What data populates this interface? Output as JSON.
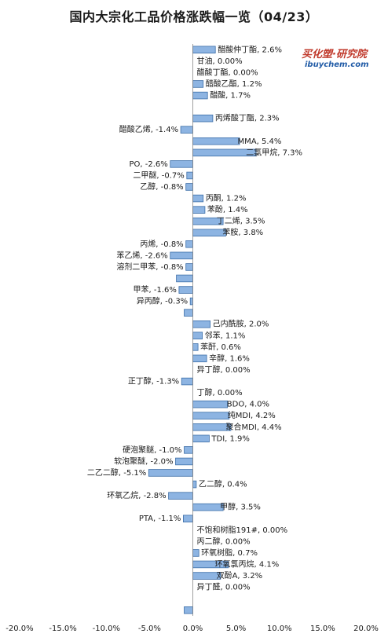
{
  "logo": {
    "main": "买化塑·研究院",
    "sub": "ibuychem.com"
  },
  "chart_data": {
    "type": "bar",
    "orientation": "horizontal",
    "title": "国内大宗化工品价格涨跌幅一览（04/23）",
    "xlim": [
      -20,
      20
    ],
    "xticks": [
      "-20.0%",
      "-15.0%",
      "-10.0%",
      "-5.0%",
      "0.0%",
      "5.0%",
      "10.0%",
      "15.0%",
      "20.0%"
    ],
    "grid": false,
    "legend": "none",
    "bar_color": "#8db4e2",
    "bars": [
      {
        "label": "醋酸仲丁酯, 2.6%",
        "value": 2.6
      },
      {
        "label": "甘油, 0.00%",
        "value": 0.0
      },
      {
        "label": "醋酸丁酯, 0.00%",
        "value": 0.0
      },
      {
        "label": "醋酸乙酯, 1.2%",
        "value": 1.2
      },
      {
        "label": "醋酸, 1.7%",
        "value": 1.7
      },
      {
        "label": "",
        "value": 0.0
      },
      {
        "label": "丙烯酸丁酯, 2.3%",
        "value": 2.3
      },
      {
        "label": "醋酸乙烯, -1.4%",
        "value": -1.4
      },
      {
        "label": "MMA, 5.4%",
        "value": 5.4
      },
      {
        "label": "二氯甲烷, 7.3%",
        "value": 7.3
      },
      {
        "label": "PO, -2.6%",
        "value": -2.6
      },
      {
        "label": "二甲醚, -0.7%",
        "value": -0.7
      },
      {
        "label": "乙醇, -0.8%",
        "value": -0.8
      },
      {
        "label": "丙酮, 1.2%",
        "value": 1.2
      },
      {
        "label": "苯酚, 1.4%",
        "value": 1.4
      },
      {
        "label": "丁二烯, 3.5%",
        "value": 3.5
      },
      {
        "label": "苯胺, 3.8%",
        "value": 3.8
      },
      {
        "label": "丙烯, -0.8%",
        "value": -0.8
      },
      {
        "label": "苯乙烯, -2.6%",
        "value": -2.6
      },
      {
        "label": "溶剂二甲苯, -0.8%",
        "value": -0.8
      },
      {
        "label": "",
        "value": -1.9
      },
      {
        "label": "甲苯, -1.6%",
        "value": -1.6
      },
      {
        "label": "异丙醇, -0.3%",
        "value": -0.3
      },
      {
        "label": "",
        "value": -1.0
      },
      {
        "label": "己内酰胺, 2.0%",
        "value": 2.0
      },
      {
        "label": "邻苯, 1.1%",
        "value": 1.1
      },
      {
        "label": "苯酐, 0.6%",
        "value": 0.6
      },
      {
        "label": "辛醇, 1.6%",
        "value": 1.6
      },
      {
        "label": "异丁醇, 0.00%",
        "value": 0.0
      },
      {
        "label": "正丁醇, -1.3%",
        "value": -1.3
      },
      {
        "label": "丁醇, 0.00%",
        "value": 0.0
      },
      {
        "label": "BDO, 4.0%",
        "value": 4.0
      },
      {
        "label": "纯MDI, 4.2%",
        "value": 4.2
      },
      {
        "label": "聚合MDI, 4.4%",
        "value": 4.4
      },
      {
        "label": "TDI, 1.9%",
        "value": 1.9
      },
      {
        "label": "硬泡聚醚, -1.0%",
        "value": -1.0
      },
      {
        "label": "软泡聚醚, -2.0%",
        "value": -2.0
      },
      {
        "label": "二乙二醇, -5.1%",
        "value": -5.1
      },
      {
        "label": "乙二醇, 0.4%",
        "value": 0.4
      },
      {
        "label": "环氧乙烷, -2.8%",
        "value": -2.8
      },
      {
        "label": "甲醇, 3.5%",
        "value": 3.5
      },
      {
        "label": "PTA, -1.1%",
        "value": -1.1
      },
      {
        "label": "不饱和树脂191#, 0.00%",
        "value": 0.0
      },
      {
        "label": "丙二醇, 0.00%",
        "value": 0.0
      },
      {
        "label": "环氧树脂, 0.7%",
        "value": 0.7
      },
      {
        "label": "环氧氯丙烷, 4.1%",
        "value": 4.1
      },
      {
        "label": "双酚A, 3.2%",
        "value": 3.2
      },
      {
        "label": "异丁醛, 0.00%",
        "value": 0.0
      },
      {
        "label": "",
        "value": 0.0
      },
      {
        "label": "",
        "value": -1.0
      }
    ]
  }
}
